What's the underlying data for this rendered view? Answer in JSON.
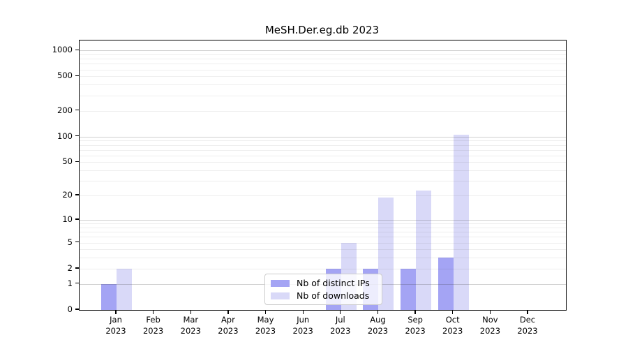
{
  "title": "MeSH.Der.eg.db 2023",
  "chart_data": {
    "type": "bar",
    "title": "MeSH.Der.eg.db 2023",
    "categories": [
      {
        "month": "Jan",
        "year": "2023"
      },
      {
        "month": "Feb",
        "year": "2023"
      },
      {
        "month": "Mar",
        "year": "2023"
      },
      {
        "month": "Apr",
        "year": "2023"
      },
      {
        "month": "May",
        "year": "2023"
      },
      {
        "month": "Jun",
        "year": "2023"
      },
      {
        "month": "Jul",
        "year": "2023"
      },
      {
        "month": "Aug",
        "year": "2023"
      },
      {
        "month": "Sep",
        "year": "2023"
      },
      {
        "month": "Oct",
        "year": "2023"
      },
      {
        "month": "Nov",
        "year": "2023"
      },
      {
        "month": "Dec",
        "year": "2023"
      }
    ],
    "series": [
      {
        "name": "Nb of distinct IPs",
        "color": "#a4a4f4",
        "values": [
          1,
          0,
          0,
          0,
          0,
          0,
          2,
          2,
          2,
          3,
          0,
          0
        ]
      },
      {
        "name": "Nb of downloads",
        "color": "#d9d9f8",
        "values": [
          2,
          0,
          0,
          0,
          0,
          0,
          5,
          19,
          23,
          105,
          0,
          0
        ]
      }
    ],
    "y_axis": {
      "scale": "log10(1+x)",
      "tick_values": [
        0,
        1,
        2,
        5,
        10,
        20,
        50,
        100,
        200,
        500,
        1000
      ],
      "range_max": 1300
    },
    "x_axis": {
      "year": "2023"
    },
    "grid": true,
    "legend_position": "lower center"
  },
  "colors": {
    "bar_distinct_ips": "#a4a4f4",
    "bar_downloads": "#d9d9f8",
    "grid_major": "#cccccc",
    "grid_minor": "#ececec",
    "axis": "#000000",
    "legend_border": "#cccccc"
  }
}
